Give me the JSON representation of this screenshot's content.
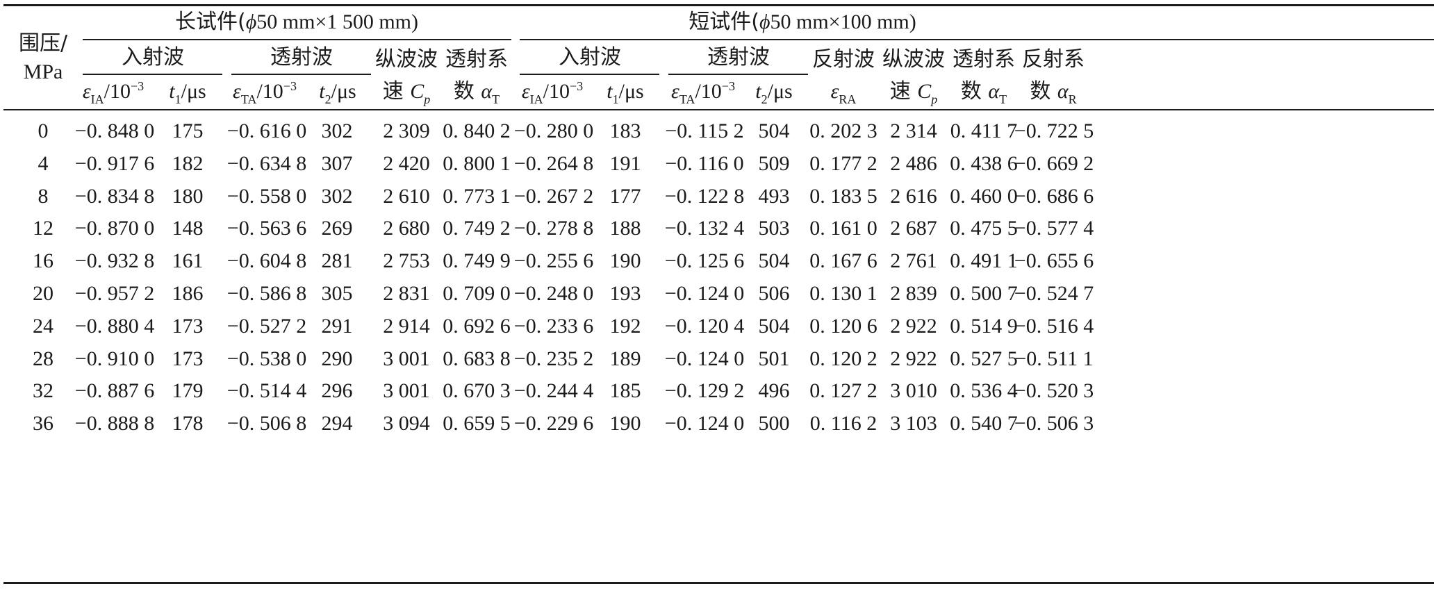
{
  "table": {
    "confining_header": [
      "围压/",
      "MPa"
    ],
    "long_group": {
      "label_prefix": "长试件(",
      "phi": "ϕ",
      "label_suffix": "50 mm×1 500 mm)",
      "incident": "入射波",
      "transmitted": "透射波",
      "vp": [
        "纵波波",
        "速 "
      ],
      "alpha_t": [
        "透射系",
        "数 "
      ]
    },
    "short_group": {
      "label_prefix": "短试件(",
      "phi": "ϕ",
      "label_suffix": "50 mm×100 mm)",
      "incident": "入射波",
      "transmitted": "透射波",
      "reflected": "反射波",
      "vp": [
        "纵波波",
        "速 "
      ],
      "alpha_t": [
        "透射系",
        "数 "
      ],
      "alpha_r": [
        "反射系",
        "数 "
      ]
    },
    "symbols": {
      "eps": "ε",
      "IA": "IA",
      "TA": "TA",
      "RA": "RA",
      "per": "/10",
      "exp": "−3",
      "t": "t",
      "t1sub": "1",
      "t2sub": "2",
      "mus": "/μs",
      "C": "C",
      "p": "p",
      "alpha": "α",
      "T": "T",
      "R": "R"
    },
    "rows": [
      [
        "0",
        "−0. 848 0",
        "175",
        "−0. 616 0",
        "302",
        "2 309",
        "0. 840 2",
        "−0. 280 0",
        "183",
        "−0. 115 2",
        "504",
        "0. 202 3",
        "2 314",
        "0. 411 7",
        "−0. 722 5"
      ],
      [
        "4",
        "−0. 917 6",
        "182",
        "−0. 634 8",
        "307",
        "2 420",
        "0. 800 1",
        "−0. 264 8",
        "191",
        "−0. 116 0",
        "509",
        "0. 177 2",
        "2 486",
        "0. 438 6",
        "−0. 669 2"
      ],
      [
        "8",
        "−0. 834 8",
        "180",
        "−0. 558 0",
        "302",
        "2 610",
        "0. 773 1",
        "−0. 267 2",
        "177",
        "−0. 122 8",
        "493",
        "0. 183 5",
        "2 616",
        "0. 460 0",
        "−0. 686 6"
      ],
      [
        "12",
        "−0. 870 0",
        "148",
        "−0. 563 6",
        "269",
        "2 680",
        "0. 749 2",
        "−0. 278 8",
        "188",
        "−0. 132 4",
        "503",
        "0. 161 0",
        "2 687",
        "0. 475 5",
        "−0. 577 4"
      ],
      [
        "16",
        "−0. 932 8",
        "161",
        "−0. 604 8",
        "281",
        "2 753",
        "0. 749 9",
        "−0. 255 6",
        "190",
        "−0. 125 6",
        "504",
        "0. 167 6",
        "2 761",
        "0. 491 1",
        "−0. 655 6"
      ],
      [
        "20",
        "−0. 957 2",
        "186",
        "−0. 586 8",
        "305",
        "2 831",
        "0. 709 0",
        "−0. 248 0",
        "193",
        "−0. 124 0",
        "506",
        "0. 130 1",
        "2 839",
        "0. 500 7",
        "−0. 524 7"
      ],
      [
        "24",
        "−0. 880 4",
        "173",
        "−0. 527 2",
        "291",
        "2 914",
        "0. 692 6",
        "−0. 233 6",
        "192",
        "−0. 120 4",
        "504",
        "0. 120 6",
        "2 922",
        "0. 514 9",
        "−0. 516 4"
      ],
      [
        "28",
        "−0. 910 0",
        "173",
        "−0. 538 0",
        "290",
        "3 001",
        "0. 683 8",
        "−0. 235 2",
        "189",
        "−0. 124 0",
        "501",
        "0. 120 2",
        "2 922",
        "0. 527 5",
        "−0. 511 1"
      ],
      [
        "32",
        "−0. 887 6",
        "179",
        "−0. 514 4",
        "296",
        "3 001",
        "0. 670 3",
        "−0. 244 4",
        "185",
        "−0. 129 2",
        "496",
        "0. 127 2",
        "3 010",
        "0. 536 4",
        "−0. 520 3"
      ],
      [
        "36",
        "−0. 888 8",
        "178",
        "−0. 506 8",
        "294",
        "3 094",
        "0. 659 5",
        "−0. 229 6",
        "190",
        "−0. 124 0",
        "500",
        "0. 116 2",
        "3 103",
        "0. 540 7",
        "−0. 506 3"
      ]
    ]
  }
}
